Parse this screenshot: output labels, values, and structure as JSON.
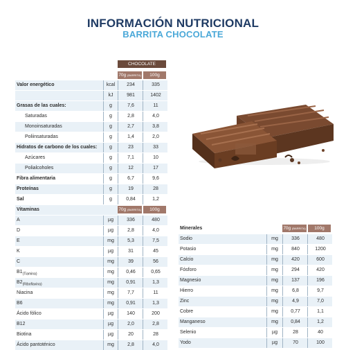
{
  "header": {
    "title": "INFORMACIÓN NUTRICIONAL",
    "subtitle": "BARRITA CHOCOLATE"
  },
  "main_table": {
    "flavor_header": "CHOCOLATE",
    "col1_header": "70g",
    "col1_sub": "(BARRITA)",
    "col2_header": "100g",
    "rows": [
      {
        "label": "Valor energético",
        "unit": "kcal",
        "v1": "234",
        "v2": "335",
        "bold": true,
        "shade": true
      },
      {
        "label": "",
        "unit": "kJ",
        "v1": "981",
        "v2": "1402",
        "shade": true
      },
      {
        "label": "Grasas de las cuales:",
        "unit": "g",
        "v1": "7,6",
        "v2": "11",
        "bold": true,
        "shade": true
      },
      {
        "label": "Saturadas",
        "unit": "g",
        "v1": "2,8",
        "v2": "4,0",
        "indent": true
      },
      {
        "label": "Monoinsaturadas",
        "unit": "g",
        "v1": "2,7",
        "v2": "3,8",
        "indent": true,
        "shade": true
      },
      {
        "label": "Poliinsaturadas",
        "unit": "g",
        "v1": "1,4",
        "v2": "2,0",
        "indent": true
      },
      {
        "label": "Hidratos de carbono de los cuales:",
        "unit": "g",
        "v1": "23",
        "v2": "33",
        "bold": true,
        "shade": true
      },
      {
        "label": "Azúcares",
        "unit": "g",
        "v1": "7,1",
        "v2": "10",
        "indent": true
      },
      {
        "label": "Polialcoholes",
        "unit": "g",
        "v1": "12",
        "v2": "17",
        "indent": true,
        "shade": true
      },
      {
        "label": "Fibra alimentaria",
        "unit": "g",
        "v1": "6,7",
        "v2": "9,6",
        "bold": true
      },
      {
        "label": "Proteínas",
        "unit": "g",
        "v1": "19",
        "v2": "28",
        "bold": true,
        "shade": true
      },
      {
        "label": "Sal",
        "unit": "g",
        "v1": "0,84",
        "v2": "1,2",
        "bold": true
      }
    ]
  },
  "vitamins_table": {
    "title": "Vitaminas",
    "col1_header": "70g",
    "col1_sub": "(BARRITA)",
    "col2_header": "100g",
    "rows": [
      {
        "label": "A",
        "unit": "µg",
        "v1": "336",
        "v2": "480",
        "shade": true
      },
      {
        "label": "D",
        "unit": "µg",
        "v1": "2,8",
        "v2": "4,0"
      },
      {
        "label": "E",
        "unit": "mg",
        "v1": "5,3",
        "v2": "7,5",
        "shade": true
      },
      {
        "label": "K",
        "unit": "µg",
        "v1": "31",
        "v2": "45"
      },
      {
        "label": "C",
        "unit": "mg",
        "v1": "39",
        "v2": "56",
        "shade": true
      },
      {
        "label": "B1",
        "sub": "(Tiamina)",
        "unit": "mg",
        "v1": "0,46",
        "v2": "0,65"
      },
      {
        "label": "B2",
        "sub": "(Riboflavina)",
        "unit": "mg",
        "v1": "0,91",
        "v2": "1,3",
        "shade": true
      },
      {
        "label": "Niacina",
        "unit": "mg",
        "v1": "7,7",
        "v2": "11"
      },
      {
        "label": "B6",
        "unit": "mg",
        "v1": "0,91",
        "v2": "1,3",
        "shade": true
      },
      {
        "label": "Ácido fólico",
        "unit": "µg",
        "v1": "140",
        "v2": "200"
      },
      {
        "label": "B12",
        "unit": "µg",
        "v1": "2,0",
        "v2": "2,8",
        "shade": true
      },
      {
        "label": "Biotina",
        "unit": "µg",
        "v1": "20",
        "v2": "28"
      },
      {
        "label": "Ácido pantoténico",
        "unit": "mg",
        "v1": "2,8",
        "v2": "4,0",
        "shade": true
      }
    ]
  },
  "minerals_table": {
    "title": "Minerales",
    "col1_header": "70g",
    "col1_sub": "(BARRITA)",
    "col2_header": "100g",
    "rows": [
      {
        "label": "Sodio",
        "unit": "mg",
        "v1": "336",
        "v2": "480",
        "shade": true
      },
      {
        "label": "Potasio",
        "unit": "mg",
        "v1": "840",
        "v2": "1200"
      },
      {
        "label": "Calcio",
        "unit": "mg",
        "v1": "420",
        "v2": "600",
        "shade": true
      },
      {
        "label": "Fósforo",
        "unit": "mg",
        "v1": "294",
        "v2": "420"
      },
      {
        "label": "Magnesio",
        "unit": "mg",
        "v1": "137",
        "v2": "196",
        "shade": true
      },
      {
        "label": "Hierro",
        "unit": "mg",
        "v1": "6,8",
        "v2": "9,7"
      },
      {
        "label": "Zinc",
        "unit": "mg",
        "v1": "4,9",
        "v2": "7,0",
        "shade": true
      },
      {
        "label": "Cobre",
        "unit": "mg",
        "v1": "0,77",
        "v2": "1,1"
      },
      {
        "label": "Manganeso",
        "unit": "mg",
        "v1": "0,84",
        "v2": "1,2",
        "shade": true
      },
      {
        "label": "Selenio",
        "unit": "µg",
        "v1": "28",
        "v2": "40"
      },
      {
        "label": "Yodo",
        "unit": "µg",
        "v1": "70",
        "v2": "100",
        "shade": true
      }
    ]
  },
  "colors": {
    "title": "#1f3b64",
    "subtitle": "#4aa8d8",
    "header_dark": "#6b4a3b",
    "header_light": "#a1786a",
    "row_shade": "#e9f1f7"
  },
  "image": {
    "icon": "chocolate-bar-image"
  }
}
